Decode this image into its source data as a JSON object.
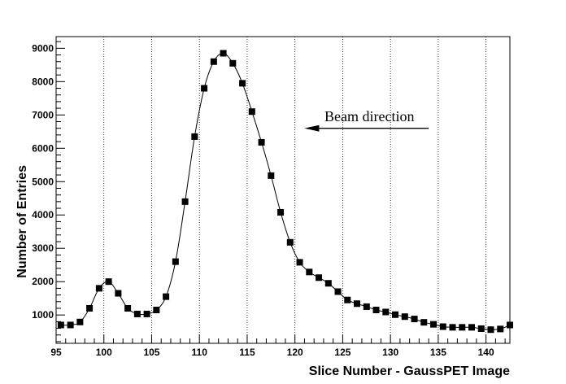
{
  "chart_data": {
    "type": "line",
    "xlabel": "Slice Number - GaussPET Image",
    "ylabel": "Number of Entries",
    "xlim": [
      95,
      142.5
    ],
    "ylim": [
      150,
      9350
    ],
    "x_ticks": [
      "95",
      "100",
      "105",
      "110",
      "115",
      "120",
      "125",
      "130",
      "135",
      "140"
    ],
    "y_ticks": [
      "1000",
      "2000",
      "3000",
      "4000",
      "5000",
      "6000",
      "7000",
      "8000",
      "9000"
    ],
    "grid": "vertical dotted lines at major x ticks",
    "annotation": {
      "text": "Beam direction",
      "arrow_from_x": 134,
      "arrow_to_x": 121,
      "arrow_y": 6600
    },
    "series": [
      {
        "marker": "square",
        "x": [
          95.5,
          96.5,
          97.5,
          98.5,
          99.5,
          100.5,
          101.5,
          102.5,
          103.5,
          104.5,
          105.5,
          106.5,
          107.5,
          108.5,
          109.5,
          110.5,
          111.5,
          112.5,
          113.5,
          114.5,
          115.5,
          116.5,
          117.5,
          118.5,
          119.5,
          120.5,
          121.5,
          122.5,
          123.5,
          124.5,
          125.5,
          126.5,
          127.5,
          128.5,
          129.5,
          130.5,
          131.5,
          132.5,
          133.5,
          134.5,
          135.5,
          136.5,
          137.5,
          138.5,
          139.5,
          140.5,
          141.5,
          142.5
        ],
        "y": [
          700,
          700,
          790,
          1200,
          1800,
          2000,
          1650,
          1200,
          1030,
          1030,
          1150,
          1550,
          2600,
          4400,
          6350,
          7800,
          8600,
          8850,
          8550,
          7950,
          7100,
          6180,
          5180,
          4080,
          3180,
          2580,
          2290,
          2120,
          1950,
          1700,
          1450,
          1340,
          1250,
          1150,
          1090,
          1010,
          950,
          880,
          780,
          720,
          650,
          630,
          630,
          630,
          590,
          560,
          580,
          700
        ]
      }
    ]
  }
}
